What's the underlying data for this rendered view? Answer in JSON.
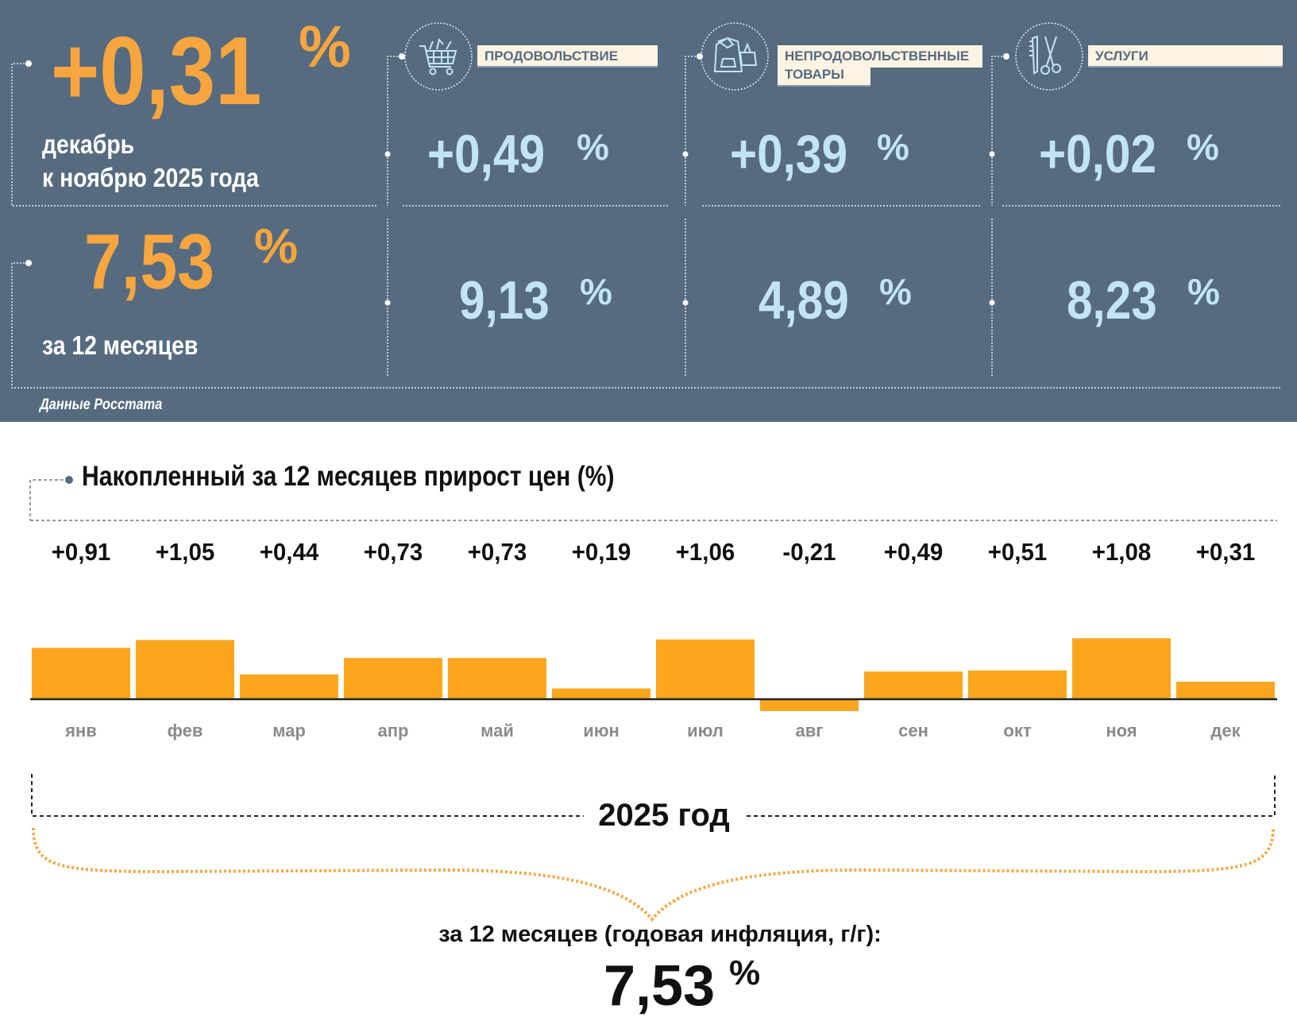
{
  "colors": {
    "panel": "#566b80",
    "accent": "#f7a63f",
    "value": "#c3e4f4",
    "label_bg": "#fdf3e2"
  },
  "summary": {
    "monthly": {
      "value": "+0,31",
      "unit": "%",
      "line1": "декабрь",
      "line2": "к ноябрю 2025 года"
    },
    "annual": {
      "value": "7,53",
      "unit": "%",
      "caption": "за 12 месяцев"
    },
    "source": "Данные Росстата"
  },
  "categories": [
    {
      "label_line1": "ПРОДОВОЛЬСТВИЕ",
      "label_line2": "",
      "icon": "shopping-cart-icon",
      "monthly": "+0,49",
      "annual": "9,13",
      "unit": "%"
    },
    {
      "label_line1": "НЕПРОДОВОЛЬСТВЕННЫЕ",
      "label_line2": "ТОВАРЫ",
      "icon": "clothing-bag-icon",
      "monthly": "+0,39",
      "annual": "4,89",
      "unit": "%"
    },
    {
      "label_line1": "УСЛУГИ",
      "label_line2": "",
      "icon": "comb-scissors-icon",
      "monthly": "+0,02",
      "annual": "8,23",
      "unit": "%"
    }
  ],
  "chart_data": {
    "type": "bar",
    "title": "Накопленный за 12 месяцев прирост цен (%)",
    "categories": [
      "янв",
      "фев",
      "мар",
      "апр",
      "май",
      "июн",
      "июл",
      "авг",
      "сен",
      "окт",
      "ноя",
      "дек"
    ],
    "values": [
      0.91,
      1.05,
      0.44,
      0.73,
      0.73,
      0.19,
      1.06,
      -0.21,
      0.49,
      0.51,
      1.08,
      0.31
    ],
    "value_labels": [
      "+0,91",
      "+1,05",
      "+0,44",
      "+0,73",
      "+0,73",
      "+0,19",
      "+1,06",
      "-0,21",
      "+0,49",
      "+0,51",
      "+1,08",
      "+0,31"
    ],
    "bar_color": "#fba61e",
    "grid": false,
    "period_label": "2025 год",
    "total_caption": "за 12 месяцев (годовая инфляция, г/г):",
    "total_value": "7,53",
    "total_unit": "%"
  }
}
